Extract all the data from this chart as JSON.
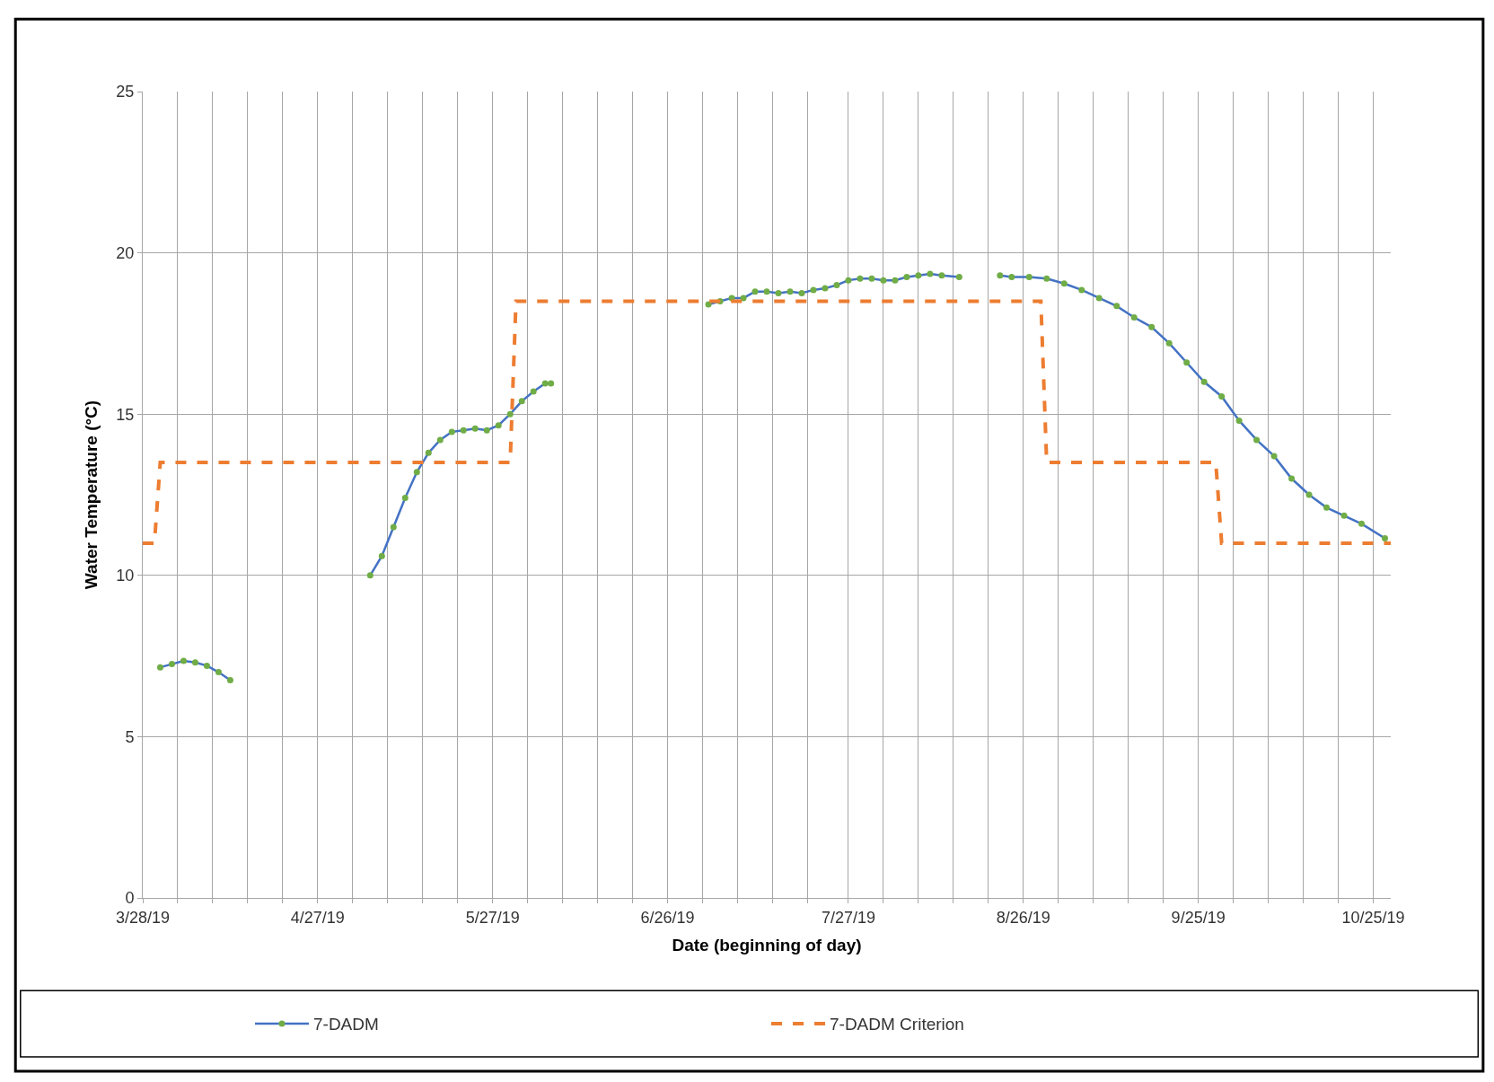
{
  "chart_data": {
    "type": "line",
    "xlabel": "Date (beginning of day)",
    "ylabel": "Water Temperature (°C)",
    "xlim": [
      "--03-28",
      "--10-28"
    ],
    "xticks": [
      {
        "value": "--03-28",
        "label": "3/28/19"
      },
      {
        "value": "--04-03",
        "label": null
      },
      {
        "value": "--04-09",
        "label": null
      },
      {
        "value": "--04-15",
        "label": null
      },
      {
        "value": "--04-21",
        "label": null
      },
      {
        "value": "--04-27",
        "label": "4/27/19"
      },
      {
        "value": "--05-03",
        "label": null
      },
      {
        "value": "--05-09",
        "label": null
      },
      {
        "value": "--05-15",
        "label": null
      },
      {
        "value": "--05-21",
        "label": null
      },
      {
        "value": "--05-27",
        "label": "5/27/19"
      },
      {
        "value": "--06-02",
        "label": null
      },
      {
        "value": "--06-08",
        "label": null
      },
      {
        "value": "--06-14",
        "label": null
      },
      {
        "value": "--06-20",
        "label": null
      },
      {
        "value": "--06-26",
        "label": "6/26/19"
      },
      {
        "value": "--07-02",
        "label": null
      },
      {
        "value": "--07-08",
        "label": null
      },
      {
        "value": "--07-14",
        "label": null
      },
      {
        "value": "--07-20",
        "label": null
      },
      {
        "value": "--07-27",
        "label": "7/27/19"
      },
      {
        "value": "--08-02",
        "label": null
      },
      {
        "value": "--08-08",
        "label": null
      },
      {
        "value": "--08-14",
        "label": null
      },
      {
        "value": "--08-20",
        "label": null
      },
      {
        "value": "--08-26",
        "label": "8/26/19"
      },
      {
        "value": "--09-01",
        "label": null
      },
      {
        "value": "--09-07",
        "label": null
      },
      {
        "value": "--09-13",
        "label": null
      },
      {
        "value": "--09-19",
        "label": null
      },
      {
        "value": "--09-25",
        "label": "9/25/19"
      },
      {
        "value": "--10-01",
        "label": null
      },
      {
        "value": "--10-07",
        "label": null
      },
      {
        "value": "--10-13",
        "label": null
      },
      {
        "value": "--10-19",
        "label": null
      },
      {
        "value": "--10-25",
        "label": "10/25/19"
      }
    ],
    "ylim": [
      0,
      25
    ],
    "yticks": [
      0,
      5,
      10,
      15,
      20,
      25
    ],
    "grid": true,
    "legend": "bottom",
    "series": [
      {
        "name": "7-DADM",
        "color": "#4472c4",
        "marker": "circle",
        "line_style": "solid",
        "x": [
          "--03-31",
          "--04-02",
          "--04-04",
          "--04-06",
          "--04-08",
          "--04-10",
          "--04-12",
          "--04-20",
          "--05-06",
          "--05-08",
          "--05-10",
          "--05-12",
          "--05-14",
          "--05-16",
          "--05-18",
          "--05-20",
          "--05-22",
          "--05-24",
          "--05-26",
          "--05-28",
          "--05-30",
          "--06-01",
          "--06-03",
          "--06-05",
          "--06-06",
          "--06-20",
          "--07-03",
          "--07-05",
          "--07-07",
          "--07-09",
          "--07-11",
          "--07-13",
          "--07-15",
          "--07-17",
          "--07-19",
          "--07-21",
          "--07-23",
          "--07-25",
          "--07-27",
          "--07-29",
          "--07-31",
          "--08-02",
          "--08-04",
          "--08-06",
          "--08-08",
          "--08-10",
          "--08-12",
          "--08-15",
          "--08-18",
          "--08-22",
          "--08-24",
          "--08-27",
          "--08-30",
          "--09-02",
          "--09-05",
          "--09-08",
          "--09-11",
          "--09-14",
          "--09-17",
          "--09-20",
          "--09-23",
          "--09-26",
          "--09-29",
          "--10-02",
          "--10-05",
          "--10-08",
          "--10-11",
          "--10-14",
          "--10-17",
          "--10-20",
          "--10-23",
          "--10-27"
        ],
        "values": [
          7.15,
          7.25,
          7.35,
          7.3,
          7.2,
          7.0,
          6.75,
          null,
          10.0,
          10.6,
          11.5,
          12.4,
          13.2,
          13.8,
          14.2,
          14.45,
          14.5,
          14.55,
          14.5,
          14.65,
          15.0,
          15.4,
          15.7,
          15.95,
          15.95,
          null,
          18.4,
          18.5,
          18.6,
          18.6,
          18.8,
          18.8,
          18.75,
          18.8,
          18.75,
          18.85,
          18.9,
          19.0,
          19.15,
          19.2,
          19.2,
          19.15,
          19.15,
          19.25,
          19.3,
          19.35,
          19.3,
          19.25,
          null,
          19.3,
          19.25,
          19.25,
          19.2,
          19.05,
          18.85,
          18.6,
          18.35,
          18.0,
          17.7,
          17.2,
          16.6,
          16.0,
          15.55,
          14.8,
          14.2,
          13.7,
          13.0,
          12.5,
          12.1,
          11.85,
          11.6,
          11.15
        ]
      },
      {
        "name": "7-DADM Criterion",
        "color": "#ed7d31",
        "marker": "none",
        "line_style": "dashed",
        "x": [
          "--03-28",
          "--03-30",
          "--03-31",
          "--05-30",
          "--05-31",
          "--08-29",
          "--08-30",
          "--09-28",
          "--09-29",
          "--10-28"
        ],
        "values": [
          11,
          11,
          13.5,
          13.5,
          18.5,
          18.5,
          13.5,
          13.5,
          11,
          11
        ]
      }
    ]
  }
}
